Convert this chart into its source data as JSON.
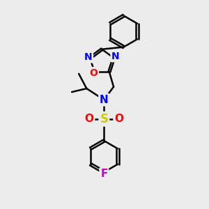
{
  "bg_color": "#ececec",
  "bond_color": "#000000",
  "bond_width": 1.8,
  "atom_colors": {
    "N": "#0000ff",
    "O": "#ff0000",
    "S": "#cccc00",
    "F": "#cc00cc",
    "C": "#000000"
  },
  "font_size_atom": 11,
  "xlim": [
    0,
    10
  ],
  "ylim": [
    0,
    12
  ]
}
